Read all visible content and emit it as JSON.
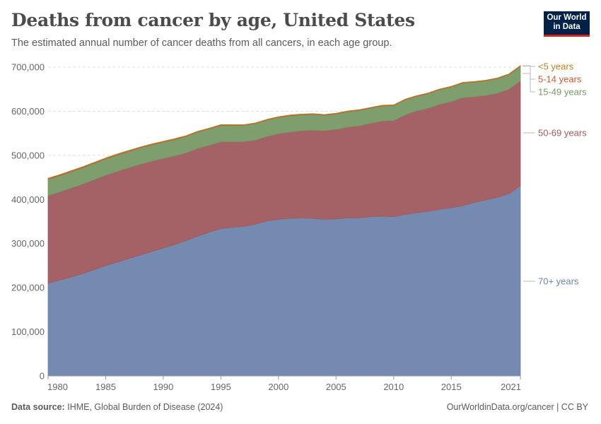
{
  "header": {
    "title": "Deaths from cancer by age, United States",
    "subtitle": "The estimated annual number of cancer deaths from all cancers, in each age group."
  },
  "logo": {
    "line1": "Our World",
    "line2": "in Data"
  },
  "footer": {
    "source_label": "Data source:",
    "source_text": "IHME, Global Burden of Disease (2024)",
    "url": "OurWorldinData.org/cancer | CC BY"
  },
  "colors": {
    "70plus": "#6d84ad",
    "50to69": "#a05a5e",
    "15to49": "#779966",
    "5to14": "#c15c33",
    "under5": "#b97f26",
    "brand": "#002147",
    "brand_accent": "#ce261e"
  },
  "chart_data": {
    "type": "area",
    "stacked": true,
    "x": [
      1980,
      1981,
      1982,
      1983,
      1984,
      1985,
      1986,
      1987,
      1988,
      1989,
      1990,
      1991,
      1992,
      1993,
      1994,
      1995,
      1996,
      1997,
      1998,
      1999,
      2000,
      2001,
      2002,
      2003,
      2004,
      2005,
      2006,
      2007,
      2008,
      2009,
      2010,
      2011,
      2012,
      2013,
      2014,
      2015,
      2016,
      2017,
      2018,
      2019,
      2020,
      2021
    ],
    "x_ticks": [
      1980,
      1985,
      1990,
      1995,
      2000,
      2005,
      2010,
      2015,
      2021
    ],
    "y_ticks": [
      0,
      100000,
      200000,
      300000,
      400000,
      500000,
      600000,
      700000
    ],
    "y_tick_labels": [
      "0",
      "100,000",
      "200,000",
      "300,000",
      "400,000",
      "500,000",
      "600,000",
      "700,000"
    ],
    "ylim": [
      0,
      700000
    ],
    "grid": true,
    "legend_position": "right",
    "series": [
      {
        "name": "70+ years",
        "color_key": "70plus",
        "values": [
          210000,
          217000,
          224000,
          232000,
          241000,
          250000,
          258000,
          266000,
          274000,
          282000,
          290000,
          298000,
          307000,
          317000,
          326000,
          334000,
          337000,
          339000,
          344000,
          351000,
          355000,
          357000,
          358000,
          357000,
          355000,
          356000,
          358000,
          358000,
          361000,
          362000,
          361000,
          366000,
          370000,
          373000,
          378000,
          381000,
          386000,
          393000,
          399000,
          405000,
          413000,
          431000
        ]
      },
      {
        "name": "50-69 years",
        "color_key": "50to69",
        "values": [
          199000,
          200000,
          202000,
          203000,
          204000,
          205000,
          206000,
          206000,
          206000,
          205000,
          203000,
          201000,
          199000,
          199000,
          197000,
          197000,
          194000,
          192000,
          191000,
          192000,
          194000,
          196000,
          198000,
          200000,
          201000,
          203000,
          206000,
          209000,
          212000,
          216000,
          218000,
          226000,
          231000,
          234000,
          238000,
          241000,
          245000,
          240000,
          237000,
          236000,
          237000,
          238000
        ]
      },
      {
        "name": "15-49 years",
        "color_key": "15to49",
        "values": [
          37000,
          37000,
          37000,
          37000,
          37000,
          37000,
          37000,
          37000,
          37000,
          37000,
          37000,
          37000,
          37000,
          37000,
          37000,
          37000,
          37000,
          37000,
          37000,
          37000,
          37000,
          37000,
          36000,
          36000,
          35000,
          35000,
          35000,
          35000,
          34000,
          34000,
          34000,
          34000,
          33000,
          33000,
          33000,
          33000,
          33000,
          33000,
          33000,
          33000,
          33000,
          33000
        ]
      },
      {
        "name": "5-14 years",
        "color_key": "5to14",
        "values": [
          1500,
          1500,
          1500,
          1500,
          1400,
          1400,
          1400,
          1400,
          1300,
          1300,
          1300,
          1300,
          1200,
          1200,
          1200,
          1200,
          1200,
          1100,
          1100,
          1100,
          1100,
          1100,
          1100,
          1000,
          1000,
          1000,
          1000,
          1000,
          1000,
          1000,
          1000,
          1000,
          1000,
          1000,
          1000,
          1000,
          1000,
          1000,
          1000,
          1000,
          1000,
          1000
        ]
      },
      {
        "name": "<5 years",
        "color_key": "under5",
        "values": [
          800,
          800,
          800,
          800,
          800,
          800,
          700,
          700,
          700,
          700,
          700,
          700,
          700,
          700,
          700,
          700,
          600,
          600,
          600,
          600,
          600,
          600,
          600,
          600,
          600,
          600,
          600,
          600,
          600,
          600,
          600,
          600,
          600,
          600,
          600,
          600,
          600,
          600,
          600,
          600,
          600,
          600
        ]
      }
    ]
  }
}
